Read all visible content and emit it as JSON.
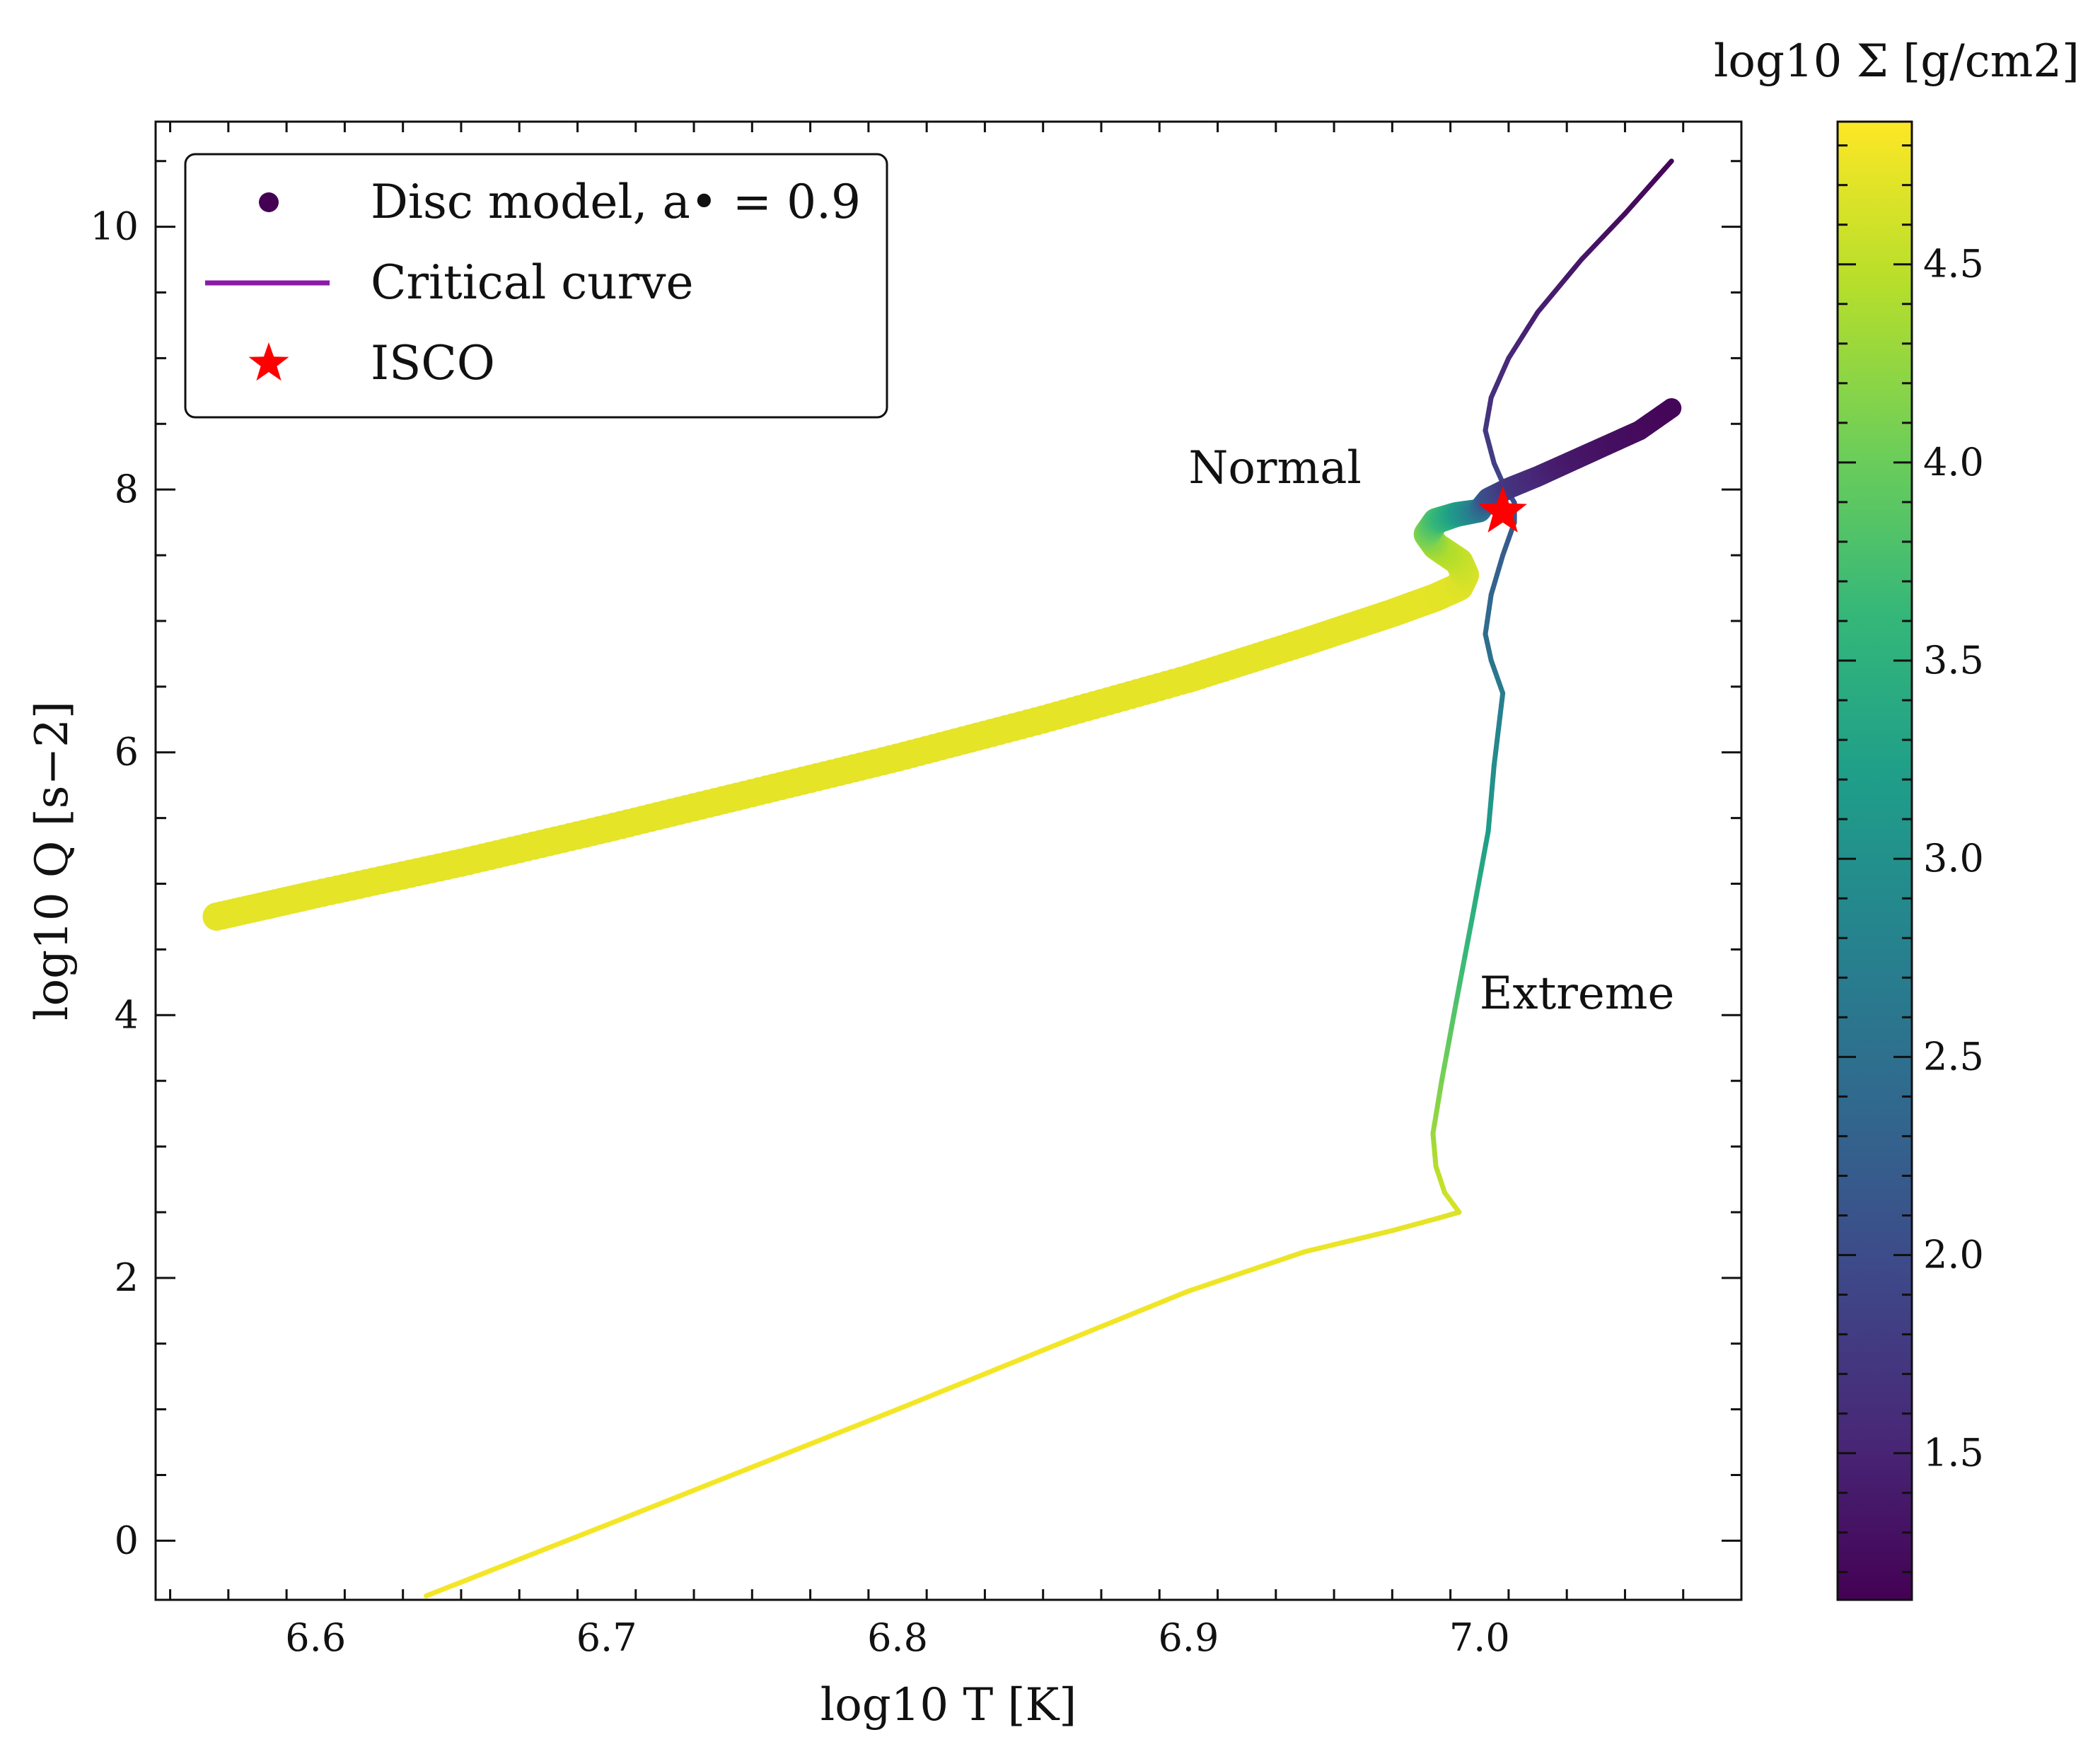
{
  "chart_data": {
    "type": "scatter",
    "xlabel": "log10 T [K]",
    "ylabel": "log10 Q [s−2]",
    "xlim": [
      6.545,
      7.09
    ],
    "ylim": [
      -0.45,
      10.8
    ],
    "x_ticks": [
      "6.6",
      "6.7",
      "6.8",
      "6.9",
      "7.0"
    ],
    "y_ticks": [
      "0",
      "2",
      "4",
      "6",
      "8",
      "10"
    ],
    "grid": false,
    "legend_position": "top-left",
    "legend": {
      "disc_model": "Disc model, a• = 0.9",
      "critical_curve": "Critical curve",
      "isco": "ISCO"
    },
    "annotations": [
      "Normal",
      "Extreme"
    ],
    "colorbar": {
      "label": "log10 Σ [g/cm2]",
      "range": [
        1.13,
        4.86
      ],
      "ticks": [
        "1.5",
        "2.0",
        "2.5",
        "3.0",
        "3.5",
        "4.0",
        "4.5"
      ],
      "colormap": "viridis"
    },
    "series": [
      {
        "name": "Disc model, a• = 0.9",
        "kind": "points",
        "x": [
          6.566,
          6.6,
          6.65,
          6.7,
          6.75,
          6.8,
          6.85,
          6.9,
          6.94,
          6.97,
          6.985,
          6.993,
          6.995,
          6.993,
          6.985,
          6.982,
          6.985,
          6.992,
          7.0,
          7.003,
          7.01,
          7.02,
          7.03,
          7.04,
          7.055,
          7.066
        ],
        "y": [
          4.75,
          4.92,
          5.16,
          5.42,
          5.69,
          5.96,
          6.25,
          6.56,
          6.84,
          7.06,
          7.18,
          7.26,
          7.35,
          7.45,
          7.57,
          7.66,
          7.76,
          7.81,
          7.84,
          7.93,
          8.01,
          8.1,
          8.2,
          8.3,
          8.45,
          8.62
        ],
        "color_value": [
          4.72,
          4.72,
          4.72,
          4.72,
          4.72,
          4.72,
          4.72,
          4.72,
          4.72,
          4.72,
          4.72,
          4.7,
          4.66,
          4.58,
          4.4,
          4.15,
          3.8,
          3.3,
          2.7,
          2.1,
          1.75,
          1.55,
          1.4,
          1.32,
          1.24,
          1.18
        ]
      },
      {
        "name": "Critical curve",
        "kind": "line",
        "x": [
          6.638,
          6.7,
          6.75,
          6.8,
          6.85,
          6.9,
          6.94,
          6.97,
          6.985,
          6.993,
          6.988,
          6.985,
          6.984,
          6.987,
          6.992,
          6.998,
          7.003,
          7.005,
          7.008,
          7.004,
          7.002,
          7.004,
          7.008,
          7.012,
          7.012,
          7.008,
          7.005,
          7.002,
          7.004,
          7.01,
          7.02,
          7.035,
          7.05,
          7.066
        ],
        "y": [
          -0.42,
          0.12,
          0.56,
          1.0,
          1.45,
          1.9,
          2.2,
          2.36,
          2.45,
          2.5,
          2.65,
          2.85,
          3.1,
          3.5,
          4.1,
          4.8,
          5.4,
          5.9,
          6.45,
          6.7,
          6.9,
          7.2,
          7.5,
          7.75,
          7.9,
          8.05,
          8.2,
          8.45,
          8.7,
          9.0,
          9.35,
          9.75,
          10.1,
          10.5
        ],
        "color_value": [
          4.8,
          4.8,
          4.8,
          4.8,
          4.8,
          4.78,
          4.76,
          4.74,
          4.72,
          4.66,
          4.58,
          4.45,
          4.3,
          4.1,
          3.8,
          3.5,
          3.2,
          2.95,
          2.7,
          2.55,
          2.45,
          2.35,
          2.25,
          2.15,
          2.05,
          1.95,
          1.85,
          1.75,
          1.65,
          1.55,
          1.45,
          1.35,
          1.25,
          1.18
        ]
      },
      {
        "name": "ISCO",
        "kind": "marker",
        "x": [
          7.008
        ],
        "y": [
          7.83
        ],
        "color": "#ff0000"
      }
    ]
  }
}
